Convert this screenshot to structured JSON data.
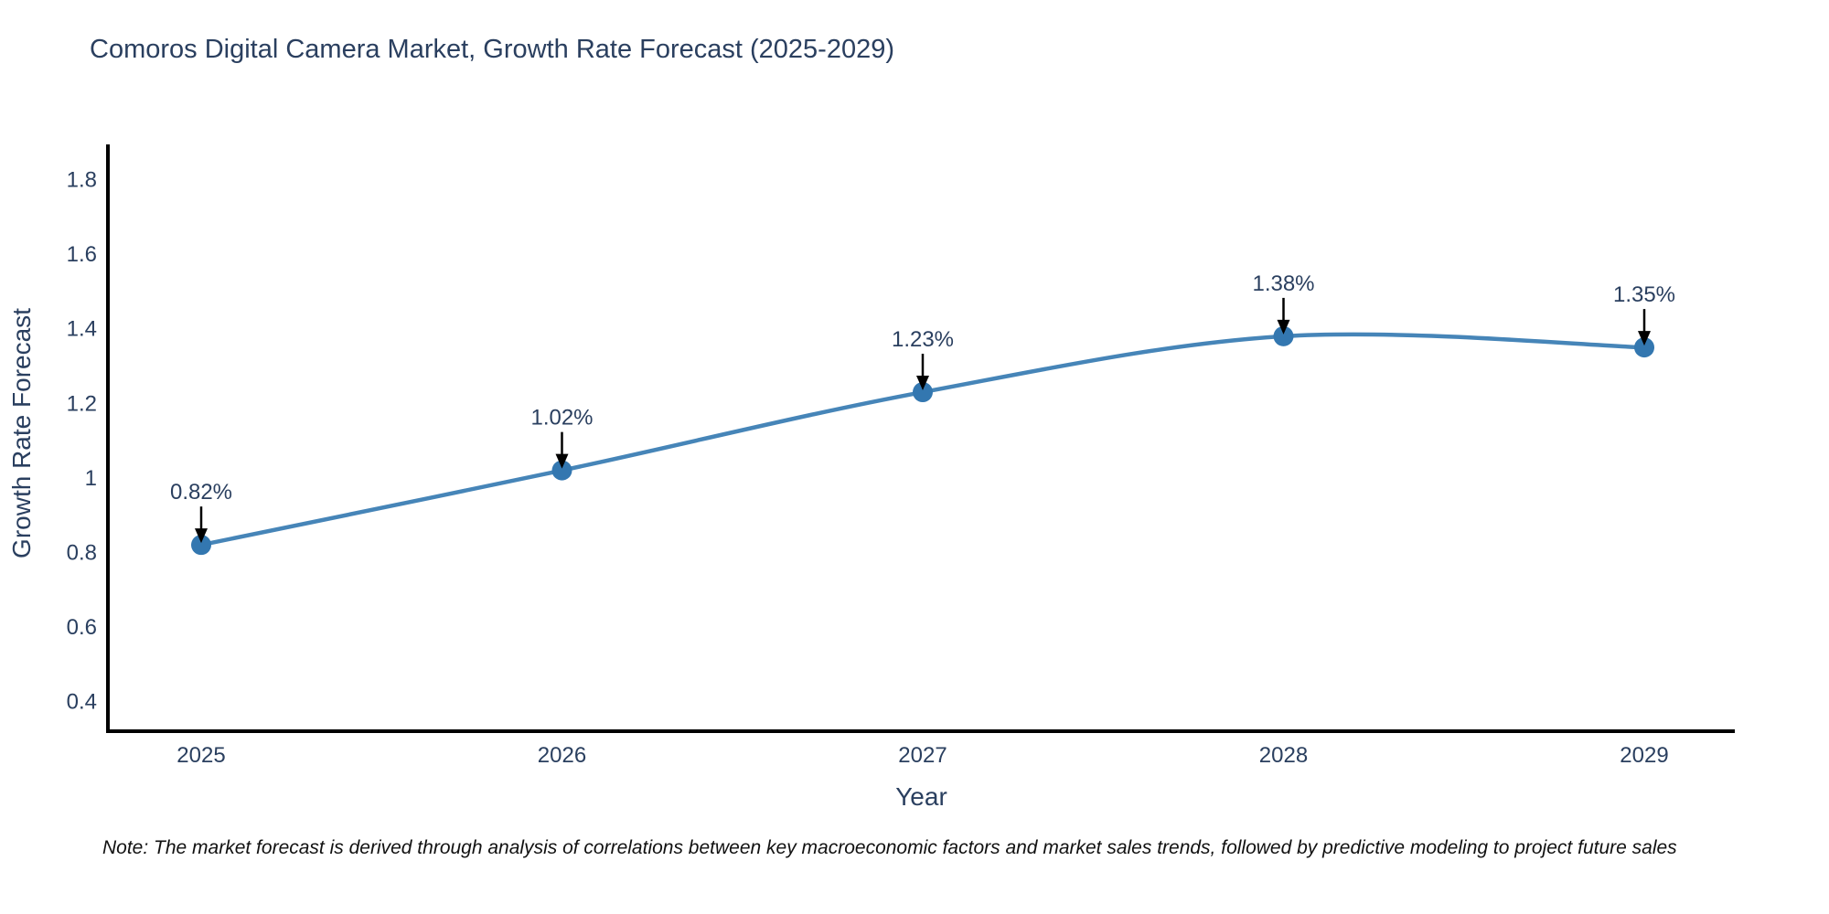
{
  "title": "Comoros Digital Camera Market, Growth Rate Forecast (2025-2029)",
  "note": "Note: The market forecast is derived through analysis of correlations between key macroeconomic factors and market sales trends, followed by predictive modeling to project future sales",
  "chart_data": {
    "type": "line",
    "line_shape": "spline",
    "title": "Comoros Digital Camera Market, Growth Rate Forecast (2025-2029)",
    "xlabel": "Year",
    "ylabel": "Growth Rate Forecast",
    "x": [
      "2025",
      "2026",
      "2027",
      "2028",
      "2029"
    ],
    "values": [
      0.82,
      1.02,
      1.23,
      1.38,
      1.35
    ],
    "point_labels": [
      "0.82%",
      "1.02%",
      "1.23%",
      "1.38%",
      "1.35%"
    ],
    "yticks": [
      0.4,
      0.6,
      0.8,
      1,
      1.2,
      1.4,
      1.6,
      1.8
    ],
    "ytick_labels": [
      "0.4",
      "0.6",
      "0.8",
      "1",
      "1.2",
      "1.4",
      "1.6",
      "1.8"
    ],
    "ylim": [
      0.32,
      1.89
    ],
    "grid": false,
    "legend": "none",
    "colors": {
      "line": "#4685b8",
      "marker": "#3377b0",
      "axis": "#000000",
      "arrow": "#000000",
      "text": "#2a3f5f"
    }
  }
}
